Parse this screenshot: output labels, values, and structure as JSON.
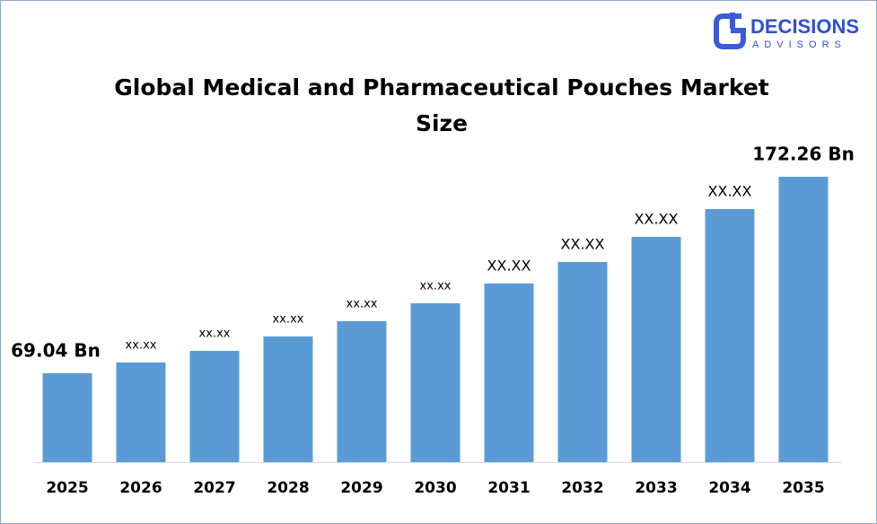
{
  "logo": {
    "name": "DECISIONS",
    "tagline": "ADVISORS"
  },
  "chart_data": {
    "type": "bar",
    "title": "Global Medical and Pharmaceutical Pouches Market Size",
    "categories": [
      "2025",
      "2026",
      "2027",
      "2028",
      "2029",
      "2030",
      "2031",
      "2032",
      "2033",
      "2034",
      "2035"
    ],
    "values": [
      69.04,
      74.7,
      80.8,
      88.4,
      96.4,
      105.8,
      116.2,
      127.5,
      140.7,
      155.3,
      172.26
    ],
    "value_labels": [
      "69.04 Bn",
      "xx.xx",
      "xx.xx",
      "xx.xx",
      "xx.xx",
      "xx.xx",
      "XX.XX",
      "XX.XX",
      "XX.XX",
      "XX.XX",
      "172.26 Bn"
    ],
    "color": "#5b9bd5"
  }
}
